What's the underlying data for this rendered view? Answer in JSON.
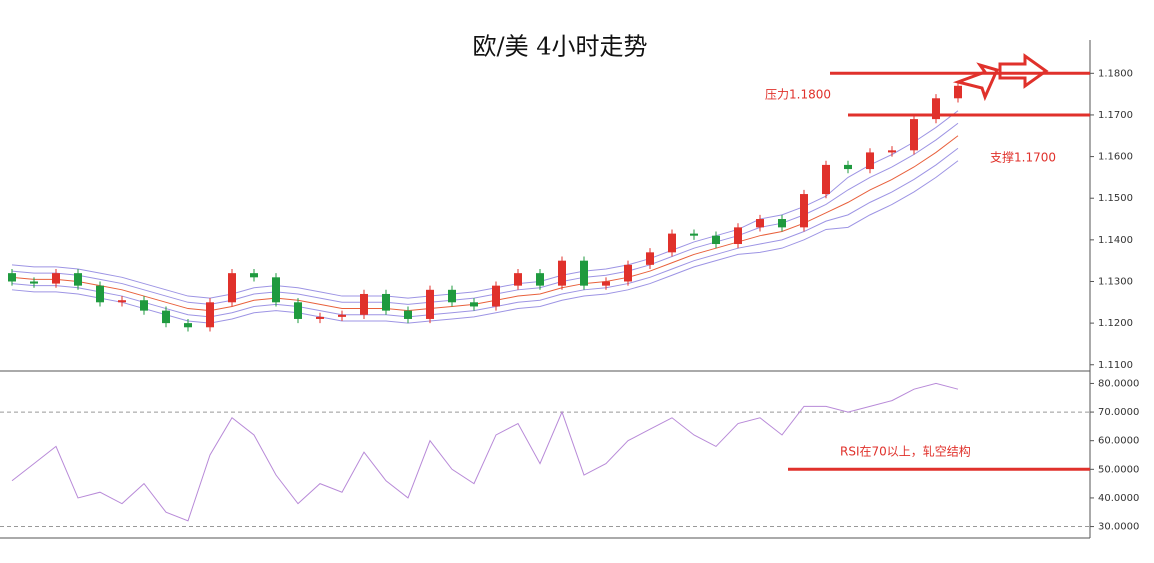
{
  "chart_data": [
    {
      "type": "candlestick",
      "title": "欧/美 4小时走势",
      "up_color": "#e0312b",
      "down_color": "#1f9a3f",
      "open": [
        1.132,
        1.13,
        1.1295,
        1.132,
        1.129,
        1.125,
        1.1255,
        1.123,
        1.12,
        1.119,
        1.125,
        1.132,
        1.131,
        1.125,
        1.121,
        1.1215,
        1.122,
        1.127,
        1.123,
        1.121,
        1.128,
        1.125,
        1.124,
        1.129,
        1.132,
        1.129,
        1.135,
        1.129,
        1.13,
        1.134,
        1.137,
        1.1415,
        1.141,
        1.139,
        1.143,
        1.145,
        1.143,
        1.151,
        1.158,
        1.157,
        1.161,
        1.1615,
        1.169,
        1.174
      ],
      "high": [
        1.133,
        1.131,
        1.133,
        1.133,
        1.13,
        1.1265,
        1.1265,
        1.124,
        1.121,
        1.126,
        1.133,
        1.133,
        1.132,
        1.126,
        1.1225,
        1.123,
        1.128,
        1.128,
        1.124,
        1.129,
        1.129,
        1.126,
        1.13,
        1.133,
        1.133,
        1.136,
        1.136,
        1.131,
        1.135,
        1.138,
        1.1425,
        1.1425,
        1.142,
        1.144,
        1.146,
        1.146,
        1.152,
        1.159,
        1.159,
        1.162,
        1.1625,
        1.17,
        1.175,
        1.178
      ],
      "low": [
        1.129,
        1.1285,
        1.1285,
        1.128,
        1.124,
        1.124,
        1.122,
        1.119,
        1.118,
        1.118,
        1.124,
        1.13,
        1.124,
        1.12,
        1.12,
        1.1205,
        1.121,
        1.122,
        1.12,
        1.12,
        1.124,
        1.123,
        1.123,
        1.128,
        1.128,
        1.128,
        1.128,
        1.128,
        1.129,
        1.133,
        1.136,
        1.14,
        1.138,
        1.138,
        1.142,
        1.142,
        1.142,
        1.15,
        1.156,
        1.156,
        1.16,
        1.1605,
        1.168,
        1.173
      ],
      "close": [
        1.13,
        1.1295,
        1.132,
        1.129,
        1.125,
        1.1255,
        1.123,
        1.12,
        1.119,
        1.125,
        1.132,
        1.131,
        1.125,
        1.121,
        1.1215,
        1.122,
        1.127,
        1.123,
        1.121,
        1.128,
        1.125,
        1.124,
        1.129,
        1.132,
        1.129,
        1.135,
        1.129,
        1.13,
        1.134,
        1.137,
        1.1415,
        1.141,
        1.139,
        1.143,
        1.145,
        1.143,
        1.151,
        1.158,
        1.157,
        1.161,
        1.1615,
        1.169,
        1.174,
        1.177
      ],
      "series": [
        {
          "color": "#9d94e4",
          "values": [
            1.134,
            1.1335,
            1.1335,
            1.133,
            1.132,
            1.131,
            1.1295,
            1.128,
            1.1265,
            1.126,
            1.127,
            1.1285,
            1.129,
            1.1285,
            1.1275,
            1.1265,
            1.1265,
            1.1265,
            1.126,
            1.1265,
            1.127,
            1.1275,
            1.1285,
            1.1295,
            1.13,
            1.1315,
            1.1325,
            1.133,
            1.134,
            1.1355,
            1.1375,
            1.1395,
            1.141,
            1.1425,
            1.145,
            1.146,
            1.148,
            1.1505,
            1.155,
            1.158,
            1.1605,
            1.1635,
            1.167,
            1.171
          ]
        },
        {
          "color": "#9d94e4",
          "values": [
            1.1325,
            1.132,
            1.132,
            1.1315,
            1.1305,
            1.1295,
            1.128,
            1.1265,
            1.125,
            1.1245,
            1.1255,
            1.127,
            1.1275,
            1.127,
            1.126,
            1.125,
            1.125,
            1.125,
            1.1245,
            1.125,
            1.1255,
            1.126,
            1.127,
            1.128,
            1.1285,
            1.13,
            1.131,
            1.1315,
            1.1325,
            1.134,
            1.136,
            1.138,
            1.1395,
            1.141,
            1.143,
            1.144,
            1.146,
            1.1485,
            1.152,
            1.155,
            1.1575,
            1.1605,
            1.164,
            1.168
          ]
        },
        {
          "color": "#e8603c",
          "values": [
            1.131,
            1.1305,
            1.1305,
            1.13,
            1.129,
            1.128,
            1.1265,
            1.125,
            1.1235,
            1.123,
            1.124,
            1.1255,
            1.126,
            1.1255,
            1.1245,
            1.1235,
            1.1235,
            1.1235,
            1.123,
            1.1235,
            1.124,
            1.1245,
            1.1255,
            1.1265,
            1.127,
            1.1285,
            1.1295,
            1.13,
            1.131,
            1.1325,
            1.1345,
            1.1365,
            1.138,
            1.1395,
            1.141,
            1.142,
            1.144,
            1.1465,
            1.149,
            1.152,
            1.1545,
            1.1575,
            1.161,
            1.165
          ]
        },
        {
          "color": "#9d94e4",
          "values": [
            1.1295,
            1.129,
            1.129,
            1.1285,
            1.1275,
            1.1265,
            1.125,
            1.1235,
            1.122,
            1.1215,
            1.1225,
            1.124,
            1.1245,
            1.124,
            1.123,
            1.122,
            1.122,
            1.122,
            1.1215,
            1.122,
            1.1225,
            1.123,
            1.124,
            1.125,
            1.1255,
            1.127,
            1.128,
            1.1285,
            1.1295,
            1.131,
            1.133,
            1.135,
            1.1365,
            1.138,
            1.139,
            1.14,
            1.142,
            1.1445,
            1.146,
            1.149,
            1.1515,
            1.1545,
            1.158,
            1.162
          ]
        },
        {
          "color": "#9d94e4",
          "values": [
            1.128,
            1.1275,
            1.1275,
            1.127,
            1.126,
            1.125,
            1.1235,
            1.122,
            1.1205,
            1.12,
            1.121,
            1.1225,
            1.123,
            1.1225,
            1.1215,
            1.1205,
            1.1205,
            1.1205,
            1.12,
            1.1205,
            1.121,
            1.1215,
            1.1225,
            1.1235,
            1.124,
            1.1255,
            1.1265,
            1.127,
            1.128,
            1.1295,
            1.1315,
            1.1335,
            1.135,
            1.1365,
            1.137,
            1.138,
            1.14,
            1.1425,
            1.143,
            1.146,
            1.1485,
            1.1515,
            1.155,
            1.159
          ]
        }
      ],
      "ylim": [
        1.1085,
        1.188
      ],
      "yticks": [
        {
          "value": 1.11,
          "label": "1.1100"
        },
        {
          "value": 1.12,
          "label": "1.1200"
        },
        {
          "value": 1.13,
          "label": "1.1300"
        },
        {
          "value": 1.14,
          "label": "1.1400"
        },
        {
          "value": 1.15,
          "label": "1.1500"
        },
        {
          "value": 1.16,
          "label": "1.1600"
        },
        {
          "value": 1.17,
          "label": "1.1700"
        },
        {
          "value": 1.18,
          "label": "1.1800"
        }
      ],
      "annotations": [
        {
          "text": "压力1.1800",
          "value": 1.18,
          "color": "#e0312b"
        },
        {
          "text": "支撑1.1700",
          "value": 1.17,
          "color": "#e0312b"
        }
      ]
    },
    {
      "type": "line",
      "series": [
        {
          "color": "#b88ad8",
          "values": [
            46,
            52,
            58,
            40,
            42,
            38,
            45,
            35,
            32,
            55,
            68,
            62,
            48,
            38,
            45,
            42,
            56,
            46,
            40,
            60,
            50,
            45,
            62,
            66,
            52,
            70,
            48,
            52,
            60,
            64,
            68,
            62,
            58,
            66,
            68,
            62,
            72,
            72,
            70,
            72,
            74,
            78,
            80,
            78
          ]
        }
      ],
      "ylim": [
        26,
        84
      ],
      "yticks": [
        {
          "value": 30,
          "label": "30.0000"
        },
        {
          "value": 40,
          "label": "40.0000"
        },
        {
          "value": 50,
          "label": "50.0000"
        },
        {
          "value": 60,
          "label": "60.0000"
        },
        {
          "value": 70,
          "label": "70.0000"
        },
        {
          "value": 80,
          "label": "80.0000"
        }
      ],
      "levels": [
        30,
        70
      ],
      "annotations": [
        {
          "text": "RSI在70以上，轧空结构",
          "value": 50,
          "color": "#e0312b"
        }
      ]
    }
  ]
}
